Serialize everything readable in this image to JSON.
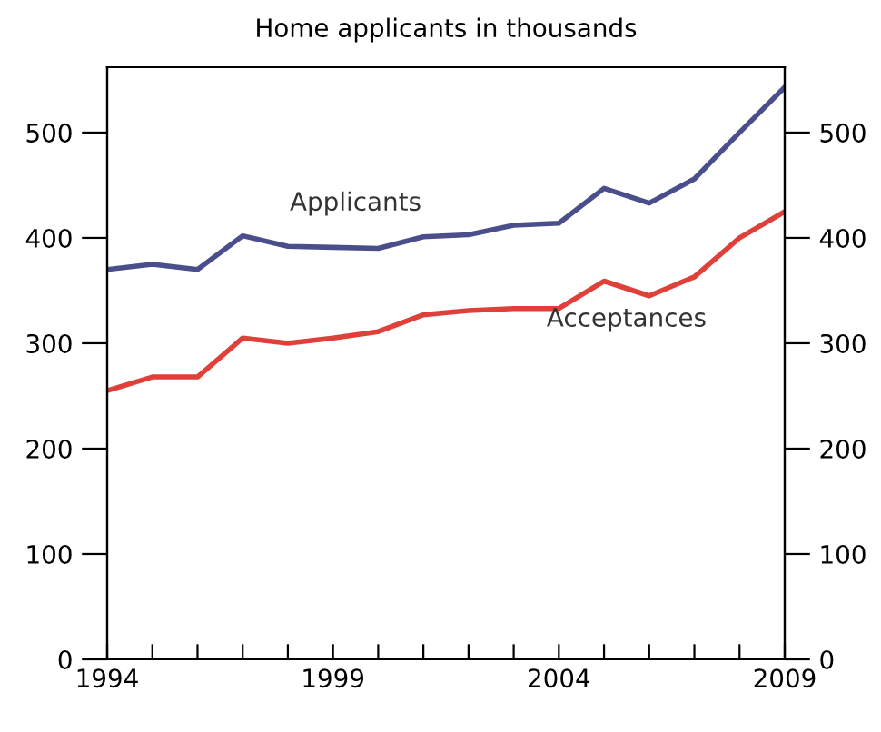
{
  "chart_data": {
    "type": "line",
    "title": "Home applicants in thousands",
    "x": [
      1994,
      1995,
      1996,
      1997,
      1998,
      1999,
      2000,
      2001,
      2002,
      2003,
      2004,
      2005,
      2006,
      2007,
      2008,
      2009
    ],
    "series": [
      {
        "name": "Applicants",
        "color": "#4a4f8c",
        "values": [
          370,
          375,
          370,
          402,
          392,
          391,
          390,
          401,
          403,
          412,
          414,
          447,
          433,
          456,
          500,
          543
        ]
      },
      {
        "name": "Acceptances",
        "color": "#e0403a",
        "values": [
          255,
          268,
          268,
          305,
          300,
          305,
          311,
          327,
          331,
          333,
          333,
          359,
          345,
          363,
          400,
          425
        ]
      }
    ],
    "xlim": [
      1994,
      2009
    ],
    "xticks": [
      1994,
      {
        "value": 1995,
        "label": null
      },
      {
        "value": 1996,
        "label": null
      },
      {
        "value": 1997,
        "label": null
      },
      {
        "value": 1998,
        "label": null
      },
      1999,
      {
        "value": 2000,
        "label": null
      },
      {
        "value": 2001,
        "label": null
      },
      {
        "value": 2002,
        "label": null
      },
      {
        "value": 2003,
        "label": null
      },
      2004,
      {
        "value": 2005,
        "label": null
      },
      {
        "value": 2006,
        "label": null
      },
      {
        "value": 2007,
        "label": null
      },
      {
        "value": 2008,
        "label": null
      },
      2009
    ],
    "ylim": [
      0,
      562
    ],
    "yticks": [
      0,
      100,
      200,
      300,
      400,
      500
    ],
    "y2lim": [
      0,
      562
    ],
    "y2ticks": [
      0,
      100,
      200,
      300,
      400,
      500
    ],
    "grid": false,
    "legend": false,
    "marker": "none",
    "line_style": "solid"
  }
}
